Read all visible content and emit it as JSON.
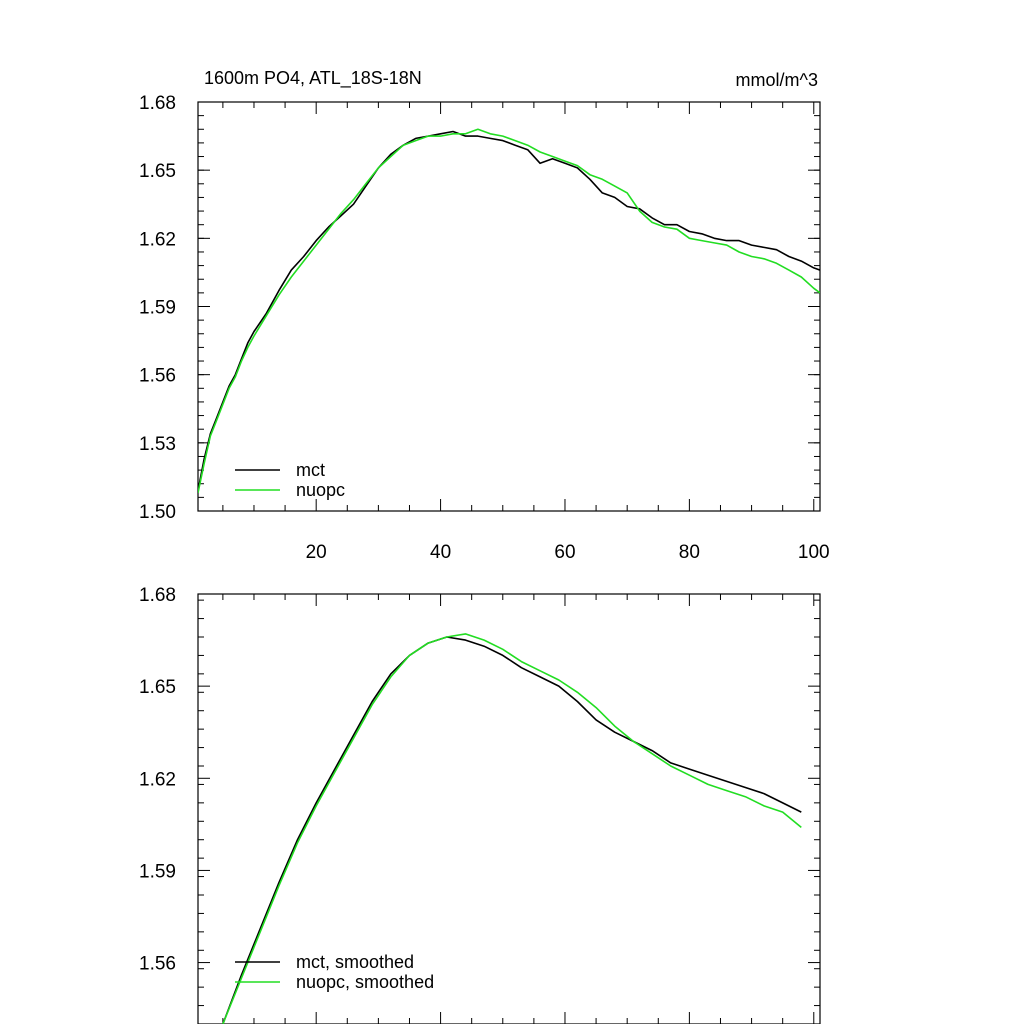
{
  "chart_data": [
    {
      "type": "line",
      "title": "1600m PO4, ATL_18S-18N",
      "units": "mmol/m^3",
      "xlim": [
        1,
        101
      ],
      "ylim": [
        1.5,
        1.68
      ],
      "xticks": [
        20,
        40,
        60,
        80,
        100
      ],
      "xtick_labels": [
        "20",
        "40",
        "60",
        "80",
        "100"
      ],
      "yticks": [
        1.5,
        1.53,
        1.56,
        1.59,
        1.62,
        1.65,
        1.68
      ],
      "ytick_labels": [
        "1.50",
        "1.53",
        "1.56",
        "1.59",
        "1.62",
        "1.65",
        "1.68"
      ],
      "legend_position": "bottom-left",
      "series": [
        {
          "name": "mct",
          "color": "#000000",
          "points": [
            [
              1,
              1.509
            ],
            [
              2,
              1.523
            ],
            [
              3,
              1.534
            ],
            [
              4,
              1.541
            ],
            [
              5,
              1.548
            ],
            [
              6,
              1.555
            ],
            [
              7,
              1.56
            ],
            [
              8,
              1.567
            ],
            [
              9,
              1.574
            ],
            [
              10,
              1.579
            ],
            [
              12,
              1.587
            ],
            [
              14,
              1.597
            ],
            [
              16,
              1.606
            ],
            [
              18,
              1.612
            ],
            [
              20,
              1.619
            ],
            [
              22,
              1.625
            ],
            [
              24,
              1.63
            ],
            [
              26,
              1.635
            ],
            [
              28,
              1.643
            ],
            [
              30,
              1.651
            ],
            [
              32,
              1.657
            ],
            [
              34,
              1.661
            ],
            [
              36,
              1.664
            ],
            [
              38,
              1.665
            ],
            [
              40,
              1.666
            ],
            [
              42,
              1.667
            ],
            [
              43,
              1.666
            ],
            [
              44,
              1.665
            ],
            [
              46,
              1.665
            ],
            [
              48,
              1.664
            ],
            [
              50,
              1.663
            ],
            [
              52,
              1.661
            ],
            [
              54,
              1.659
            ],
            [
              56,
              1.653
            ],
            [
              58,
              1.655
            ],
            [
              60,
              1.653
            ],
            [
              62,
              1.651
            ],
            [
              64,
              1.646
            ],
            [
              66,
              1.64
            ],
            [
              68,
              1.638
            ],
            [
              70,
              1.634
            ],
            [
              72,
              1.633
            ],
            [
              74,
              1.629
            ],
            [
              76,
              1.626
            ],
            [
              78,
              1.626
            ],
            [
              80,
              1.623
            ],
            [
              82,
              1.622
            ],
            [
              84,
              1.62
            ],
            [
              86,
              1.619
            ],
            [
              88,
              1.619
            ],
            [
              90,
              1.617
            ],
            [
              92,
              1.616
            ],
            [
              94,
              1.615
            ],
            [
              96,
              1.612
            ],
            [
              98,
              1.61
            ],
            [
              100,
              1.607
            ],
            [
              101,
              1.606
            ]
          ]
        },
        {
          "name": "nuopc",
          "color": "#22dd22",
          "points": [
            [
              1,
              1.508
            ],
            [
              2,
              1.521
            ],
            [
              3,
              1.533
            ],
            [
              4,
              1.54
            ],
            [
              5,
              1.547
            ],
            [
              6,
              1.554
            ],
            [
              7,
              1.559
            ],
            [
              8,
              1.566
            ],
            [
              9,
              1.572
            ],
            [
              10,
              1.577
            ],
            [
              12,
              1.586
            ],
            [
              14,
              1.595
            ],
            [
              16,
              1.603
            ],
            [
              18,
              1.61
            ],
            [
              20,
              1.617
            ],
            [
              22,
              1.624
            ],
            [
              24,
              1.631
            ],
            [
              26,
              1.637
            ],
            [
              28,
              1.644
            ],
            [
              30,
              1.651
            ],
            [
              32,
              1.656
            ],
            [
              34,
              1.661
            ],
            [
              36,
              1.663
            ],
            [
              38,
              1.665
            ],
            [
              40,
              1.665
            ],
            [
              42,
              1.666
            ],
            [
              44,
              1.666
            ],
            [
              46,
              1.668
            ],
            [
              48,
              1.666
            ],
            [
              50,
              1.665
            ],
            [
              52,
              1.663
            ],
            [
              54,
              1.661
            ],
            [
              56,
              1.658
            ],
            [
              58,
              1.656
            ],
            [
              60,
              1.654
            ],
            [
              62,
              1.652
            ],
            [
              64,
              1.648
            ],
            [
              66,
              1.646
            ],
            [
              68,
              1.643
            ],
            [
              70,
              1.64
            ],
            [
              72,
              1.632
            ],
            [
              74,
              1.627
            ],
            [
              76,
              1.625
            ],
            [
              78,
              1.624
            ],
            [
              80,
              1.62
            ],
            [
              82,
              1.619
            ],
            [
              84,
              1.618
            ],
            [
              86,
              1.617
            ],
            [
              88,
              1.614
            ],
            [
              90,
              1.612
            ],
            [
              92,
              1.611
            ],
            [
              94,
              1.609
            ],
            [
              96,
              1.606
            ],
            [
              98,
              1.603
            ],
            [
              100,
              1.598
            ],
            [
              101,
              1.596
            ]
          ]
        }
      ]
    },
    {
      "type": "line",
      "title": "",
      "xlim": [
        1,
        101
      ],
      "ylim": [
        1.54,
        1.68
      ],
      "xticks": [
        20,
        40,
        60,
        80,
        100
      ],
      "yticks": [
        1.56,
        1.59,
        1.62,
        1.65,
        1.68
      ],
      "ytick_labels": [
        "1.56",
        "1.59",
        "1.62",
        "1.65",
        "1.68"
      ],
      "legend_position": "bottom-left",
      "series": [
        {
          "name": "mct, smoothed",
          "color": "#000000",
          "points": [
            [
              5,
              1.54
            ],
            [
              8,
              1.556
            ],
            [
              11,
              1.571
            ],
            [
              14,
              1.586
            ],
            [
              17,
              1.6
            ],
            [
              20,
              1.612
            ],
            [
              23,
              1.623
            ],
            [
              26,
              1.634
            ],
            [
              29,
              1.645
            ],
            [
              32,
              1.654
            ],
            [
              35,
              1.66
            ],
            [
              38,
              1.664
            ],
            [
              41,
              1.666
            ],
            [
              44,
              1.665
            ],
            [
              47,
              1.663
            ],
            [
              50,
              1.66
            ],
            [
              53,
              1.656
            ],
            [
              56,
              1.653
            ],
            [
              59,
              1.65
            ],
            [
              62,
              1.645
            ],
            [
              65,
              1.639
            ],
            [
              68,
              1.635
            ],
            [
              71,
              1.632
            ],
            [
              74,
              1.629
            ],
            [
              77,
              1.625
            ],
            [
              80,
              1.623
            ],
            [
              83,
              1.621
            ],
            [
              86,
              1.619
            ],
            [
              89,
              1.617
            ],
            [
              92,
              1.615
            ],
            [
              95,
              1.612
            ],
            [
              98,
              1.609
            ]
          ]
        },
        {
          "name": "nuopc, smoothed",
          "color": "#22dd22",
          "points": [
            [
              5,
              1.54
            ],
            [
              8,
              1.555
            ],
            [
              11,
              1.57
            ],
            [
              14,
              1.585
            ],
            [
              17,
              1.599
            ],
            [
              20,
              1.611
            ],
            [
              23,
              1.622
            ],
            [
              26,
              1.633
            ],
            [
              29,
              1.644
            ],
            [
              32,
              1.653
            ],
            [
              35,
              1.66
            ],
            [
              38,
              1.664
            ],
            [
              41,
              1.666
            ],
            [
              44,
              1.667
            ],
            [
              47,
              1.665
            ],
            [
              50,
              1.662
            ],
            [
              53,
              1.658
            ],
            [
              56,
              1.655
            ],
            [
              59,
              1.652
            ],
            [
              62,
              1.648
            ],
            [
              65,
              1.643
            ],
            [
              68,
              1.637
            ],
            [
              71,
              1.632
            ],
            [
              74,
              1.628
            ],
            [
              77,
              1.624
            ],
            [
              80,
              1.621
            ],
            [
              83,
              1.618
            ],
            [
              86,
              1.616
            ],
            [
              89,
              1.614
            ],
            [
              92,
              1.611
            ],
            [
              95,
              1.609
            ],
            [
              98,
              1.604
            ]
          ]
        }
      ]
    }
  ]
}
